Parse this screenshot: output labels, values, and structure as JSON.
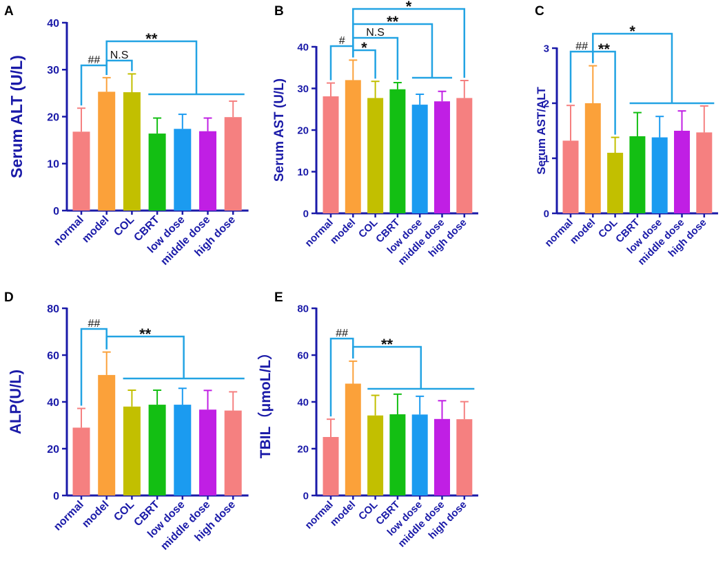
{
  "colors": {
    "axis": "#1a1aa8",
    "bracket": "#22a3e3",
    "bars": [
      "#f58080",
      "#fba13a",
      "#c2bf00",
      "#13bf13",
      "#1b9bf0",
      "#c01fe4",
      "#f58080"
    ]
  },
  "categories": [
    "normal",
    "model",
    "COL",
    "CBRT",
    "low dose",
    "middle dose",
    "high dose"
  ],
  "chart_data": [
    {
      "panel": "A",
      "type": "bar",
      "ylabel": "Serum ALT (U/L)",
      "ylim": [
        0,
        40
      ],
      "yticks": [
        "0",
        "10",
        "20",
        "30",
        "40"
      ],
      "categories": [
        "normal",
        "model",
        "COL",
        "CBRT",
        "low dose",
        "middle dose",
        "high dose"
      ],
      "values": [
        16.8,
        25.3,
        25.2,
        16.4,
        17.4,
        16.9,
        19.9
      ],
      "errors": [
        5.0,
        3.0,
        3.9,
        3.3,
        3.1,
        2.8,
        3.4
      ],
      "annotations": [
        {
          "type": "pair",
          "from": 0,
          "to": 1,
          "label": "##"
        },
        {
          "type": "pair",
          "from": 1,
          "to": 2,
          "label": "N.S"
        },
        {
          "type": "group",
          "from": 1,
          "to_first": 3,
          "to_last": 6,
          "label": "**"
        }
      ]
    },
    {
      "panel": "B",
      "type": "bar",
      "ylabel": "Serum AST (U/L)",
      "ylim": [
        0,
        40
      ],
      "yticks": [
        "0",
        "10",
        "20",
        "30",
        "40"
      ],
      "categories": [
        "normal",
        "model",
        "COL",
        "CBRT",
        "low dose",
        "middle dose",
        "high dose"
      ],
      "values": [
        28.1,
        32.0,
        27.7,
        29.8,
        26.1,
        26.9,
        27.7
      ],
      "errors": [
        3.2,
        4.8,
        4.0,
        1.6,
        2.5,
        2.4,
        4.2
      ],
      "annotations": [
        {
          "type": "pair",
          "from": 0,
          "to": 1,
          "label": "#"
        },
        {
          "type": "pair",
          "from": 1,
          "to": 2,
          "label": "*"
        },
        {
          "type": "pair",
          "from": 1,
          "to": 3,
          "label": "N.S"
        },
        {
          "type": "group",
          "from": 1,
          "to_first": 4,
          "to_last": 5,
          "label": "**"
        },
        {
          "type": "pair",
          "from": 1,
          "to": 6,
          "label": "*"
        }
      ]
    },
    {
      "panel": "C",
      "type": "bar",
      "ylabel": "Serum AST/ALT",
      "ylim": [
        0,
        3
      ],
      "yticks": [
        "0",
        "1",
        "2",
        "3"
      ],
      "categories": [
        "normal",
        "model",
        "COL",
        "CBRT",
        "low dose",
        "middle dose",
        "high dose"
      ],
      "values": [
        1.32,
        2.0,
        1.1,
        1.4,
        1.38,
        1.5,
        1.47
      ],
      "errors": [
        0.64,
        0.68,
        0.28,
        0.43,
        0.38,
        0.36,
        0.48
      ],
      "annotations": [
        {
          "type": "pair",
          "from": 0,
          "to": 1,
          "label": "##"
        },
        {
          "type": "pair",
          "from": 1,
          "to": 2,
          "label": "**"
        },
        {
          "type": "group",
          "from": 1,
          "to_first": 3,
          "to_last": 6,
          "label": "*"
        }
      ]
    },
    {
      "panel": "D",
      "type": "bar",
      "ylabel": "ALP(U/L)",
      "ylim": [
        0,
        80
      ],
      "yticks": [
        "0",
        "20",
        "40",
        "60",
        "80"
      ],
      "categories": [
        "normal",
        "model",
        "COL",
        "CBRT",
        "low dose",
        "middle dose",
        "high dose"
      ],
      "values": [
        29.0,
        51.5,
        38.0,
        38.8,
        38.8,
        36.7,
        36.3
      ],
      "errors": [
        8.2,
        9.8,
        7.0,
        6.2,
        7.0,
        8.2,
        8.0
      ],
      "annotations": [
        {
          "type": "pair",
          "from": 0,
          "to": 1,
          "label": "##"
        },
        {
          "type": "group",
          "from": 1,
          "to_first": 2,
          "to_last": 6,
          "label": "**"
        }
      ]
    },
    {
      "panel": "E",
      "type": "bar",
      "ylabel": "TBIL（μmoL/L）",
      "ylim": [
        0,
        80
      ],
      "yticks": [
        "0",
        "20",
        "40",
        "60",
        "80"
      ],
      "categories": [
        "normal",
        "model",
        "COL",
        "CBRT",
        "low dose",
        "middle dose",
        "high dose"
      ],
      "values": [
        25.0,
        47.8,
        34.2,
        34.7,
        34.6,
        32.7,
        32.6
      ],
      "errors": [
        7.6,
        9.6,
        8.6,
        8.6,
        7.8,
        7.8,
        7.5
      ],
      "annotations": [
        {
          "type": "pair",
          "from": 0,
          "to": 1,
          "label": "##"
        },
        {
          "type": "group",
          "from": 1,
          "to_first": 2,
          "to_last": 6,
          "label": "**"
        }
      ]
    }
  ]
}
